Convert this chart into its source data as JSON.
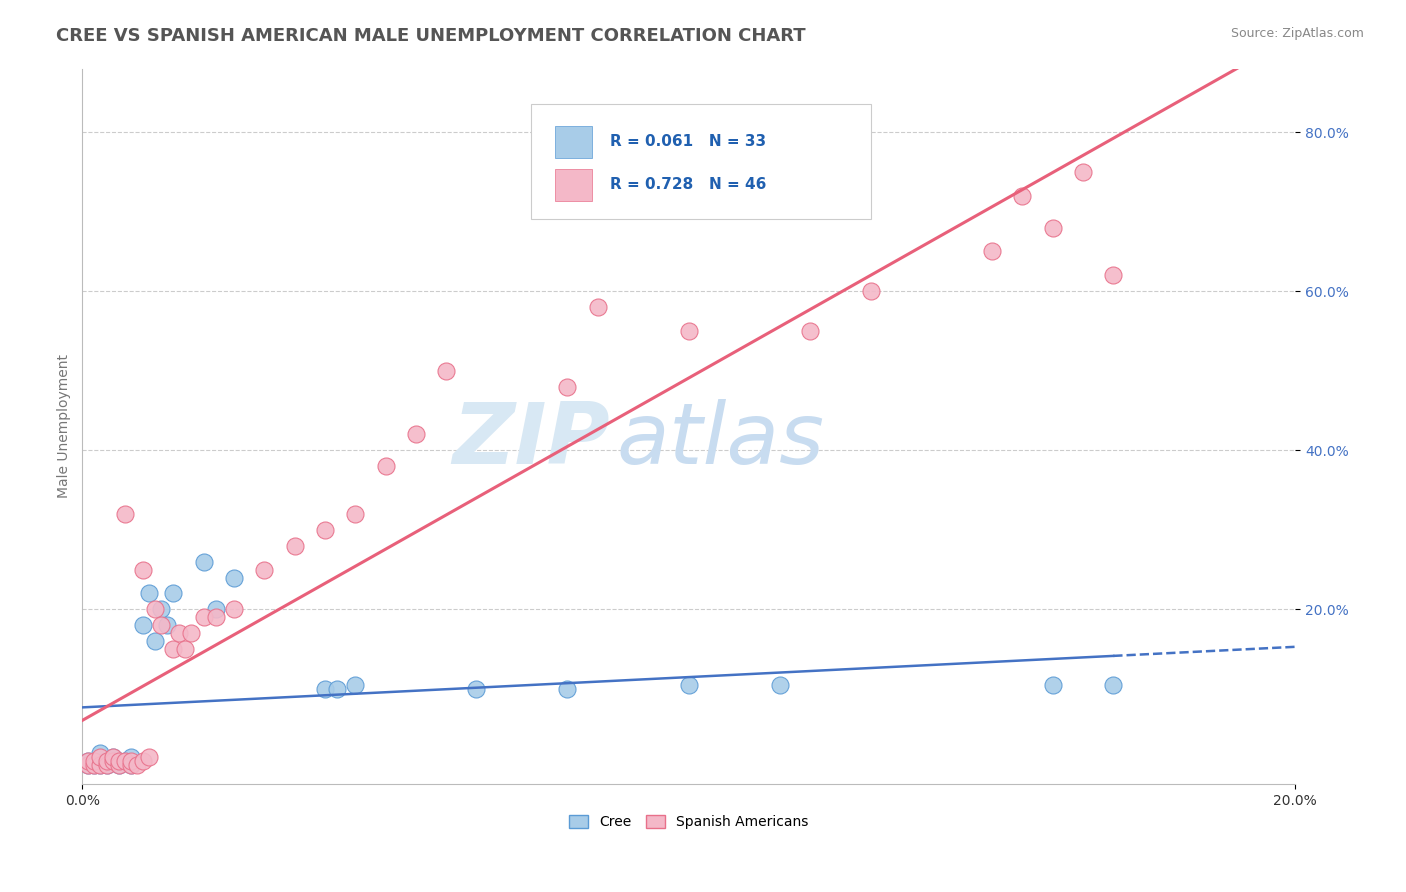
{
  "title": "CREE VS SPANISH AMERICAN MALE UNEMPLOYMENT CORRELATION CHART",
  "source_text": "Source: ZipAtlas.com",
  "ylabel": "Male Unemployment",
  "xlim": [
    0.0,
    0.2
  ],
  "ylim": [
    -0.02,
    0.88
  ],
  "ytick_labels": [
    "20.0%",
    "40.0%",
    "60.0%",
    "80.0%"
  ],
  "ytick_values": [
    0.2,
    0.4,
    0.6,
    0.8
  ],
  "xtick_labels": [
    "0.0%",
    "20.0%"
  ],
  "xtick_values": [
    0.0,
    0.2
  ],
  "cree_color": "#A8CCE8",
  "cree_edge_color": "#5B9BD5",
  "spanish_color": "#F4B8C8",
  "spanish_edge_color": "#E8708A",
  "trend_cree_color": "#4472C4",
  "trend_spanish_color": "#E8607A",
  "watermark_text_zip": "ZIP",
  "watermark_text_atlas": "atlas",
  "watermark_color_zip": "#D8E8F4",
  "watermark_color_atlas": "#C8DCF0",
  "legend_r_color": "#2060B0",
  "cree_R": 0.061,
  "cree_N": 33,
  "spanish_R": 0.728,
  "spanish_N": 46,
  "cree_points": [
    [
      0.001,
      0.01
    ],
    [
      0.001,
      0.005
    ],
    [
      0.002,
      0.005
    ],
    [
      0.002,
      0.01
    ],
    [
      0.003,
      0.005
    ],
    [
      0.003,
      0.02
    ],
    [
      0.004,
      0.005
    ],
    [
      0.004,
      0.01
    ],
    [
      0.005,
      0.01
    ],
    [
      0.005,
      0.015
    ],
    [
      0.006,
      0.005
    ],
    [
      0.006,
      0.01
    ],
    [
      0.007,
      0.01
    ],
    [
      0.008,
      0.005
    ],
    [
      0.008,
      0.015
    ],
    [
      0.01,
      0.18
    ],
    [
      0.011,
      0.22
    ],
    [
      0.012,
      0.16
    ],
    [
      0.013,
      0.2
    ],
    [
      0.014,
      0.18
    ],
    [
      0.015,
      0.22
    ],
    [
      0.02,
      0.26
    ],
    [
      0.022,
      0.2
    ],
    [
      0.025,
      0.24
    ],
    [
      0.04,
      0.1
    ],
    [
      0.042,
      0.1
    ],
    [
      0.045,
      0.105
    ],
    [
      0.065,
      0.1
    ],
    [
      0.08,
      0.1
    ],
    [
      0.1,
      0.105
    ],
    [
      0.115,
      0.105
    ],
    [
      0.16,
      0.105
    ],
    [
      0.17,
      0.105
    ]
  ],
  "spanish_points": [
    [
      0.001,
      0.005
    ],
    [
      0.001,
      0.01
    ],
    [
      0.002,
      0.005
    ],
    [
      0.002,
      0.01
    ],
    [
      0.003,
      0.005
    ],
    [
      0.003,
      0.015
    ],
    [
      0.004,
      0.005
    ],
    [
      0.004,
      0.01
    ],
    [
      0.005,
      0.01
    ],
    [
      0.005,
      0.015
    ],
    [
      0.006,
      0.005
    ],
    [
      0.006,
      0.01
    ],
    [
      0.007,
      0.32
    ],
    [
      0.007,
      0.01
    ],
    [
      0.008,
      0.005
    ],
    [
      0.008,
      0.01
    ],
    [
      0.009,
      0.005
    ],
    [
      0.01,
      0.25
    ],
    [
      0.01,
      0.01
    ],
    [
      0.011,
      0.015
    ],
    [
      0.012,
      0.2
    ],
    [
      0.013,
      0.18
    ],
    [
      0.015,
      0.15
    ],
    [
      0.016,
      0.17
    ],
    [
      0.017,
      0.15
    ],
    [
      0.018,
      0.17
    ],
    [
      0.02,
      0.19
    ],
    [
      0.022,
      0.19
    ],
    [
      0.025,
      0.2
    ],
    [
      0.03,
      0.25
    ],
    [
      0.035,
      0.28
    ],
    [
      0.04,
      0.3
    ],
    [
      0.045,
      0.32
    ],
    [
      0.05,
      0.38
    ],
    [
      0.055,
      0.42
    ],
    [
      0.06,
      0.5
    ],
    [
      0.08,
      0.48
    ],
    [
      0.085,
      0.58
    ],
    [
      0.1,
      0.55
    ],
    [
      0.12,
      0.55
    ],
    [
      0.13,
      0.6
    ],
    [
      0.15,
      0.65
    ],
    [
      0.155,
      0.72
    ],
    [
      0.16,
      0.68
    ],
    [
      0.165,
      0.75
    ],
    [
      0.17,
      0.62
    ]
  ],
  "background_color": "#FFFFFF",
  "plot_bg_color": "#FFFFFF",
  "grid_color": "#CCCCCC",
  "title_fontsize": 13,
  "axis_label_fontsize": 10,
  "tick_fontsize": 10
}
